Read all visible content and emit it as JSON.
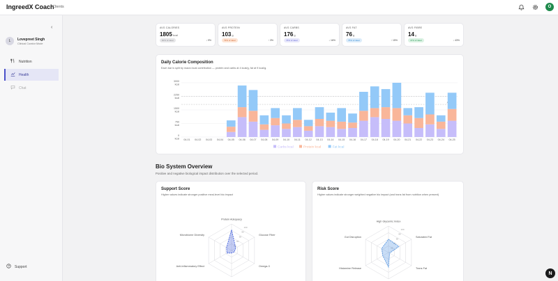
{
  "app": {
    "brand": "IngreedX Coach",
    "nav_clients": "Clients",
    "user_initial": "O"
  },
  "sidebar": {
    "collapse_glyph": "‹",
    "user": {
      "initial": "L",
      "name": "Lovepreet Singh",
      "role": "Clinical Curator Mode"
    },
    "items": [
      {
        "label": "Nutrition",
        "icon": "fork-knife-icon",
        "state": "normal"
      },
      {
        "label": "Health",
        "icon": "chart-icon",
        "state": "active"
      },
      {
        "label": "Chat",
        "icon": "chat-icon",
        "state": "disabled"
      }
    ],
    "support_label": "Support"
  },
  "stats": [
    {
      "label": "AVG CALORIES",
      "value": "1805",
      "unit": "kcal",
      "pill": "80% of ideal",
      "pill_color": "#8e8e93",
      "pill_bg": "#e6e6e8",
      "delta": "↓ 9%"
    },
    {
      "label": "AVG PROTEIN",
      "value": "103",
      "unit": "g",
      "pill": "79% of ideal",
      "pill_color": "#d26a37",
      "pill_bg": "#fde4d4",
      "delta": "↑ 3%"
    },
    {
      "label": "AVG CARBS",
      "value": "176",
      "unit": "g",
      "pill": "78% of ideal",
      "pill_color": "#6b6fd8",
      "pill_bg": "#e7e7fb",
      "delta": "↓ 16%"
    },
    {
      "label": "AVG FAT",
      "value": "76",
      "unit": "g",
      "pill": "75% of ideal",
      "pill_color": "#3a8fd6",
      "pill_bg": "#dcecfa",
      "delta": "↑ 15%"
    },
    {
      "label": "AVG FIBRE",
      "value": "14",
      "unit": "g",
      "pill": "47% of ideal",
      "pill_color": "#2d9a5a",
      "pill_bg": "#dbf2e3",
      "delta": "↓ 43%"
    }
  ],
  "calorie_card": {
    "title": "Daily Calorie Composition",
    "subtitle": "Each bar is split by macro kcal contribution — protein and carbs at 4 kcal/g, fat at 9 kcal/g."
  },
  "chart_data": {
    "type": "bar",
    "stacked": true,
    "categories": [
      "04-01",
      "04-02",
      "04-03",
      "04-04",
      "04-05",
      "04-06",
      "04-07",
      "04-08",
      "04-09",
      "04-10",
      "04-11",
      "04-12",
      "04-13",
      "04-14",
      "04-15",
      "04-16",
      "04-17",
      "04-18",
      "04-19",
      "04-20",
      "04-21",
      "04-22",
      "04-23",
      "04-24",
      "04-25"
    ],
    "series": [
      {
        "name": "Carbs kcal",
        "color": "#c6bdfa",
        "values": [
          0,
          0,
          0,
          0,
          280,
          1100,
          850,
          400,
          650,
          450,
          550,
          350,
          600,
          550,
          450,
          500,
          900,
          1100,
          1000,
          900,
          750,
          500,
          700,
          450,
          900
        ]
      },
      {
        "name": "Protein kcal",
        "color": "#f9b69a",
        "values": [
          0,
          0,
          0,
          0,
          290,
          550,
          600,
          300,
          400,
          300,
          400,
          250,
          400,
          350,
          400,
          300,
          550,
          500,
          650,
          700,
          450,
          550,
          550,
          400,
          650
        ]
      },
      {
        "name": "Fat kcal",
        "color": "#93c9f8",
        "values": [
          0,
          0,
          0,
          0,
          350,
          1200,
          1150,
          500,
          550,
          450,
          650,
          350,
          650,
          450,
          750,
          500,
          1050,
          1200,
          1000,
          1400,
          400,
          600,
          1200,
          350,
          900
        ]
      }
    ],
    "y_ticks": [
      "0 kcal",
      "750 kcal",
      "1500 kcal",
      "2250 kcal",
      "3000 kcal"
    ],
    "ylim": [
      0,
      3000
    ],
    "reference_lines": [
      {
        "label": "2240...",
        "value": 2240
      },
      {
        "label": "Avg 18...",
        "value": 1805
      }
    ],
    "legend_position": "bottom"
  },
  "bio": {
    "title": "Bio System Overview",
    "subtitle": "Positive and negative biological impact distribution over the selected period."
  },
  "support_score": {
    "title": "Support Score",
    "subtitle": "Higher values indicate stronger positive meal-level bio impact",
    "legend": "Support %",
    "color": "#3b5bdb",
    "axes": [
      "Protein Adequacy",
      "Glucose Fiber",
      "Omega-3",
      "Antioxidant Capacity",
      "Anti-Inflammatory Effect",
      "Microbiome Diversity"
    ],
    "values": [
      78,
      18,
      12,
      10,
      20,
      22
    ],
    "ticks": [
      "20",
      "40",
      "60",
      "80",
      "100"
    ]
  },
  "risk_score": {
    "title": "Risk Score",
    "subtitle": "Higher values indicate stronger weighted negative bio impact (and trans fat from nutrition when present)",
    "legend": "Risk %",
    "color": "#4a8fe0",
    "axes": [
      "High Glycemic Index",
      "Saturated Fat",
      "Trans Fat",
      "Sodium",
      "Histamine Release",
      "Gut Disruption"
    ],
    "values": [
      50,
      45,
      5,
      55,
      25,
      30
    ],
    "ticks": [
      "20",
      "40",
      "60",
      "80",
      "100"
    ]
  }
}
